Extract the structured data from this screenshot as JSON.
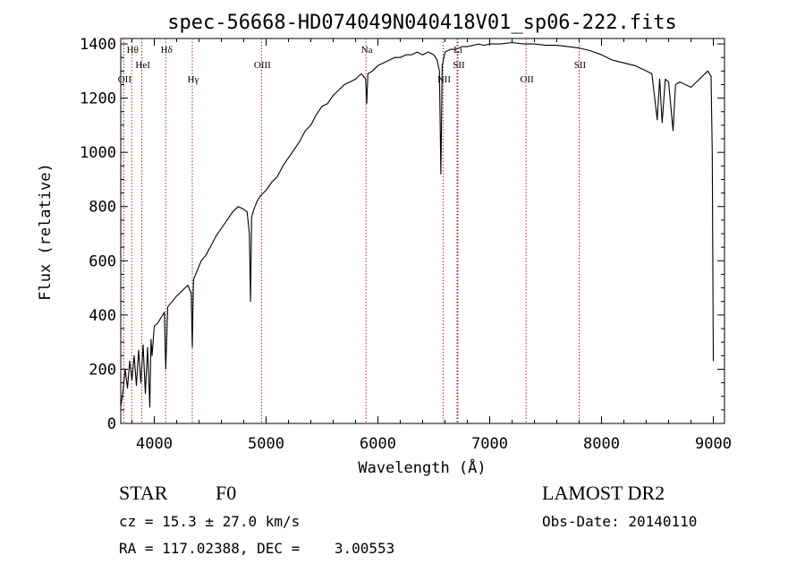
{
  "chart_data": {
    "type": "line",
    "title": "spec-56668-HD074049N040418V01_sp06-222.fits",
    "xlabel": "Wavelength (Å)",
    "ylabel": "Flux (relative)",
    "xlim": [
      3700,
      9100
    ],
    "ylim": [
      0,
      1420
    ],
    "x_ticks": [
      4000,
      5000,
      6000,
      7000,
      8000,
      9000
    ],
    "y_ticks": [
      0,
      200,
      400,
      600,
      800,
      1000,
      1200,
      1400
    ],
    "grid": false,
    "series": [
      {
        "color": "#000000",
        "x": [
          3700,
          3720,
          3740,
          3760,
          3780,
          3800,
          3820,
          3840,
          3860,
          3880,
          3900,
          3920,
          3940,
          3960,
          3970,
          3980,
          4000,
          4030,
          4060,
          4090,
          4102,
          4120,
          4160,
          4200,
          4250,
          4300,
          4330,
          4340,
          4350,
          4380,
          4420,
          4460,
          4500,
          4550,
          4600,
          4650,
          4700,
          4750,
          4800,
          4830,
          4850,
          4861,
          4870,
          4890,
          4920,
          4950,
          5000,
          5050,
          5100,
          5150,
          5200,
          5250,
          5300,
          5350,
          5400,
          5450,
          5500,
          5550,
          5600,
          5650,
          5700,
          5750,
          5800,
          5850,
          5890,
          5900,
          5910,
          5950,
          6000,
          6050,
          6100,
          6150,
          6200,
          6250,
          6300,
          6350,
          6400,
          6450,
          6500,
          6530,
          6550,
          6563,
          6575,
          6600,
          6650,
          6700,
          6750,
          6800,
          6850,
          6900,
          6950,
          7000,
          7100,
          7200,
          7300,
          7400,
          7500,
          7600,
          7700,
          7800,
          7900,
          8000,
          8100,
          8200,
          8300,
          8400,
          8450,
          8498,
          8520,
          8542,
          8570,
          8600,
          8640,
          8662,
          8700,
          8750,
          8800,
          8850,
          8900,
          8950,
          8980,
          8990,
          9000
        ],
        "y": [
          60,
          120,
          200,
          130,
          230,
          160,
          250,
          140,
          270,
          150,
          290,
          110,
          280,
          60,
          310,
          250,
          360,
          370,
          390,
          410,
          200,
          430,
          450,
          470,
          490,
          510,
          480,
          280,
          530,
          560,
          600,
          620,
          650,
          690,
          720,
          750,
          780,
          800,
          790,
          780,
          700,
          450,
          760,
          790,
          820,
          840,
          860,
          890,
          910,
          950,
          980,
          1010,
          1040,
          1080,
          1100,
          1140,
          1170,
          1180,
          1210,
          1230,
          1250,
          1260,
          1270,
          1290,
          1270,
          1180,
          1290,
          1300,
          1320,
          1330,
          1340,
          1350,
          1350,
          1360,
          1360,
          1370,
          1360,
          1370,
          1360,
          1340,
          1300,
          920,
          1320,
          1370,
          1380,
          1380,
          1390,
          1390,
          1395,
          1400,
          1395,
          1400,
          1400,
          1405,
          1400,
          1400,
          1395,
          1395,
          1390,
          1385,
          1375,
          1360,
          1340,
          1330,
          1320,
          1300,
          1290,
          1120,
          1270,
          1110,
          1270,
          1260,
          1080,
          1250,
          1260,
          1250,
          1240,
          1260,
          1280,
          1300,
          1280,
          1000,
          230
        ]
      }
    ],
    "line_markers": [
      {
        "label": "Hθ",
        "x": 3798
      },
      {
        "label": "OII",
        "x": 3727
      },
      {
        "label": "HeI",
        "x": 3889
      },
      {
        "label": "Hδ",
        "x": 4102
      },
      {
        "label": "Hγ",
        "x": 4340
      },
      {
        "label": "OIII",
        "x": 4959
      },
      {
        "label": "Na",
        "x": 5893
      },
      {
        "label": "NII",
        "x": 6583
      },
      {
        "label": "SII",
        "x": 6716
      },
      {
        "label": "Li",
        "x": 6708
      },
      {
        "label": "OII",
        "x": 7325
      },
      {
        "label": "SII",
        "x": 7800
      }
    ],
    "line_marker_color": "#b22222"
  },
  "info": {
    "object_type": "STAR",
    "spectral_class": "F0",
    "redshift_text": "cz = 15.3 ± 27.0 km/s",
    "coords_text": "RA = 117.02388, DEC =    3.00553",
    "survey": "LAMOST DR2",
    "obs_date": "Obs-Date: 20140110"
  }
}
